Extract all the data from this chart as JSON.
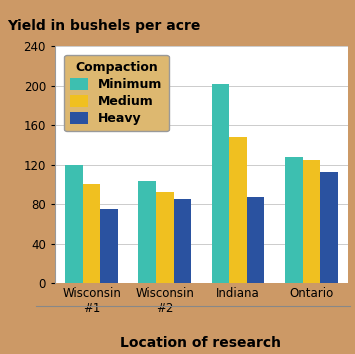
{
  "title": "Yield in bushels per acre",
  "xlabel": "Location of research",
  "categories": [
    "Wisconsin\n#1",
    "Wisconsin\n#2",
    "Indiana",
    "Ontario"
  ],
  "series": {
    "Minimum": [
      120,
      103,
      202,
      128
    ],
    "Medium": [
      100,
      92,
      148,
      125
    ],
    "Heavy": [
      75,
      85,
      87,
      113
    ]
  },
  "colors": {
    "Minimum": "#3dbfb0",
    "Medium": "#f0c020",
    "Heavy": "#2a52a0"
  },
  "ylim": [
    0,
    240
  ],
  "yticks": [
    0,
    40,
    80,
    120,
    160,
    200,
    240
  ],
  "legend_title": "Compaction",
  "background_color": "#cc9966",
  "plot_bg_color": "#ffffff",
  "legend_bg_color": "#ddb870",
  "bar_width": 0.24,
  "title_fontsize": 10,
  "axis_label_fontsize": 10,
  "tick_fontsize": 8.5,
  "legend_fontsize": 9
}
